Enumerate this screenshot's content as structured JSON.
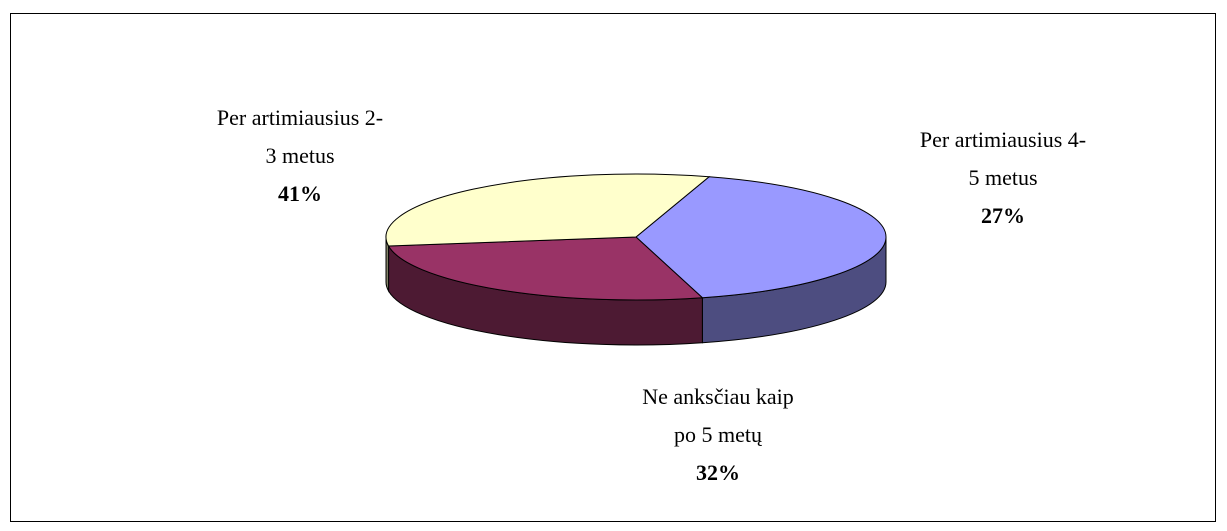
{
  "chart_data": {
    "type": "pie3d",
    "categories": [
      "Per artimiausius 2-\n3 metus",
      "Per artimiausius 4-\n5 metus",
      "Ne anksčiau kaip\npo 5 metų"
    ],
    "values": [
      41,
      27,
      32
    ],
    "value_labels": [
      "41%",
      "27%",
      "32%"
    ],
    "colors": [
      "#9999ff",
      "#993366",
      "#ffffcc"
    ]
  }
}
